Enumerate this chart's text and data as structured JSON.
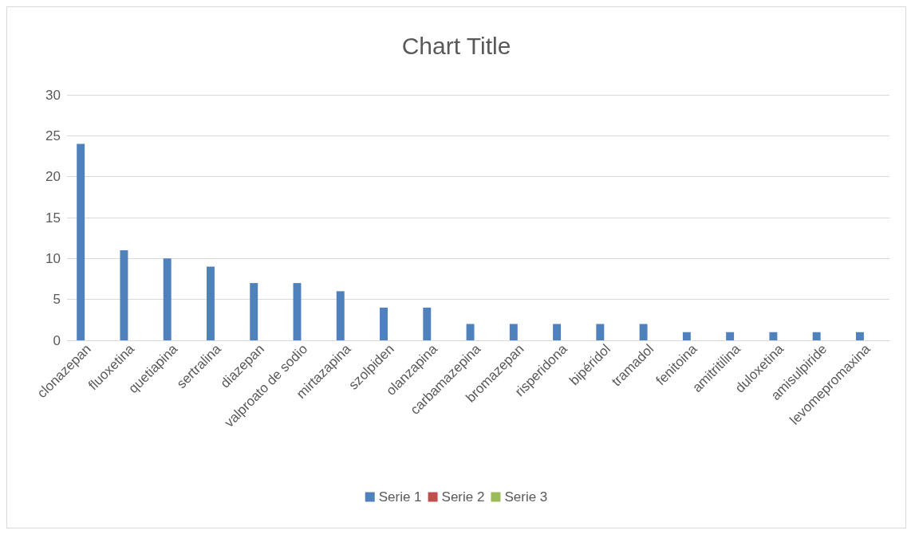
{
  "chart_data": {
    "type": "bar",
    "title": "Chart Title",
    "categories": [
      "clonazepan",
      "fluoxetina",
      "quetiapina",
      "sertralina",
      "diazepan",
      "valproato de sodio",
      "mirtazapina",
      "szolpiden",
      "olanzapina",
      "carbamazepina",
      "bromazepan",
      "risperidona",
      "bipéridol",
      "tramadol",
      "fenitoina",
      "amitritilina",
      "duloxetina",
      "amisulpiride",
      "levomepromaxina"
    ],
    "series": [
      {
        "name": "Serie 1",
        "color": "#4f81bd",
        "values": [
          24,
          11,
          10,
          9,
          7,
          7,
          6,
          4,
          4,
          2,
          2,
          2,
          2,
          2,
          1,
          1,
          1,
          1,
          1
        ]
      },
      {
        "name": "Serie 2",
        "color": "#c0504d",
        "values": [
          null,
          null,
          null,
          null,
          null,
          null,
          null,
          null,
          null,
          null,
          null,
          null,
          null,
          null,
          null,
          null,
          null,
          null,
          null
        ]
      },
      {
        "name": "Serie 3",
        "color": "#9bbb59",
        "values": [
          null,
          null,
          null,
          null,
          null,
          null,
          null,
          null,
          null,
          null,
          null,
          null,
          null,
          null,
          null,
          null,
          null,
          null,
          null
        ]
      }
    ],
    "ylim": [
      0,
      30
    ],
    "yticks": [
      0,
      5,
      10,
      15,
      20,
      25,
      30
    ],
    "grid": "y",
    "legend": "bottom"
  }
}
